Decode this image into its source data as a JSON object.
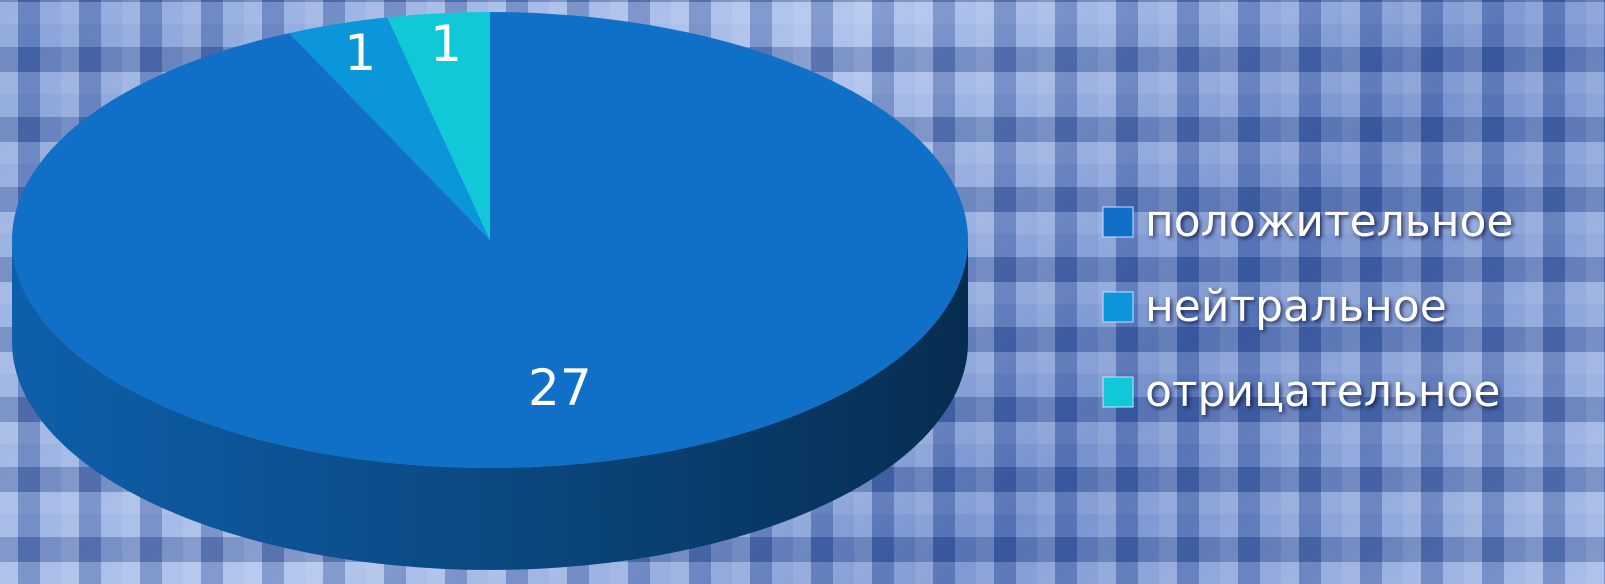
{
  "chart_data": {
    "type": "pie3d",
    "categories": [
      "положительное",
      "нейтральное",
      "отрицательное"
    ],
    "values": [
      27,
      1,
      1
    ],
    "colors": [
      "#1070c8",
      "#0a96d8",
      "#10c8d8"
    ],
    "legend": "right"
  }
}
